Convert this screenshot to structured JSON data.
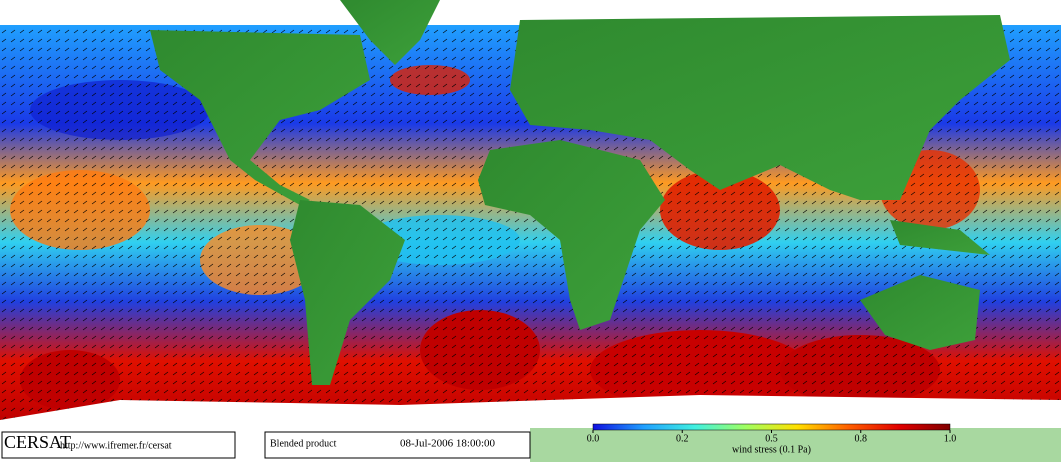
{
  "footer": {
    "logo": "CERSAT",
    "url": "http://www.ifremer.fr/cersat",
    "product": "Blended product",
    "date": "08-Jul-2006 18:00:00"
  },
  "colorbar": {
    "label": "wind stress (0.1 Pa)",
    "ticks": [
      {
        "value": 0,
        "label": "0.0"
      },
      0.2,
      0.5,
      0.8,
      {
        "value": 1,
        "label": "1.0"
      }
    ],
    "colors": [
      "#1010e0",
      "#20a0ff",
      "#40f0e0",
      "#a0ff60",
      "#ffe000",
      "#ff6000",
      "#e00000",
      "#800000"
    ]
  }
}
